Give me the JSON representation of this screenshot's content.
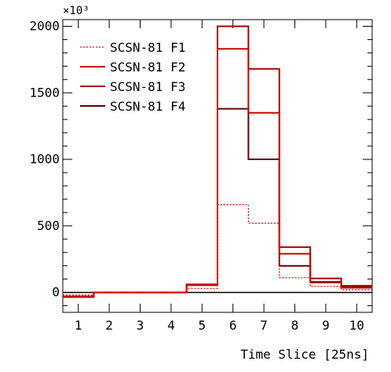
{
  "chart_data": {
    "type": "step-histogram",
    "exponent_label": "×10³",
    "xlabel": "Time Slice [25ns]",
    "ylabel": "",
    "x_bins": [
      1,
      2,
      3,
      4,
      5,
      6,
      7,
      8,
      9,
      10
    ],
    "xlim": [
      0.5,
      10.5
    ],
    "ylim": [
      -150,
      2000
    ],
    "yticks": [
      0,
      500,
      1000,
      1500,
      2000
    ],
    "legend_position": "top-left",
    "grid": false,
    "series": [
      {
        "name": "SCSN-81 F1",
        "color": "#ff0000",
        "style": "dotted",
        "values": [
          -20,
          0,
          0,
          0,
          30,
          660,
          520,
          110,
          45,
          20
        ]
      },
      {
        "name": "SCSN-81 F2",
        "color": "#cc0000",
        "style": "solid",
        "values": [
          -30,
          0,
          0,
          0,
          55,
          1830,
          1350,
          290,
          80,
          35
        ]
      },
      {
        "name": "SCSN-81 F3",
        "color": "#aa0000",
        "style": "solid",
        "values": [
          -35,
          0,
          0,
          0,
          60,
          2000,
          1680,
          340,
          105,
          50
        ]
      },
      {
        "name": "SCSN-81 F4",
        "color": "#660000",
        "style": "solid",
        "values": [
          -30,
          0,
          0,
          0,
          55,
          1380,
          1000,
          200,
          75,
          40
        ]
      }
    ]
  }
}
